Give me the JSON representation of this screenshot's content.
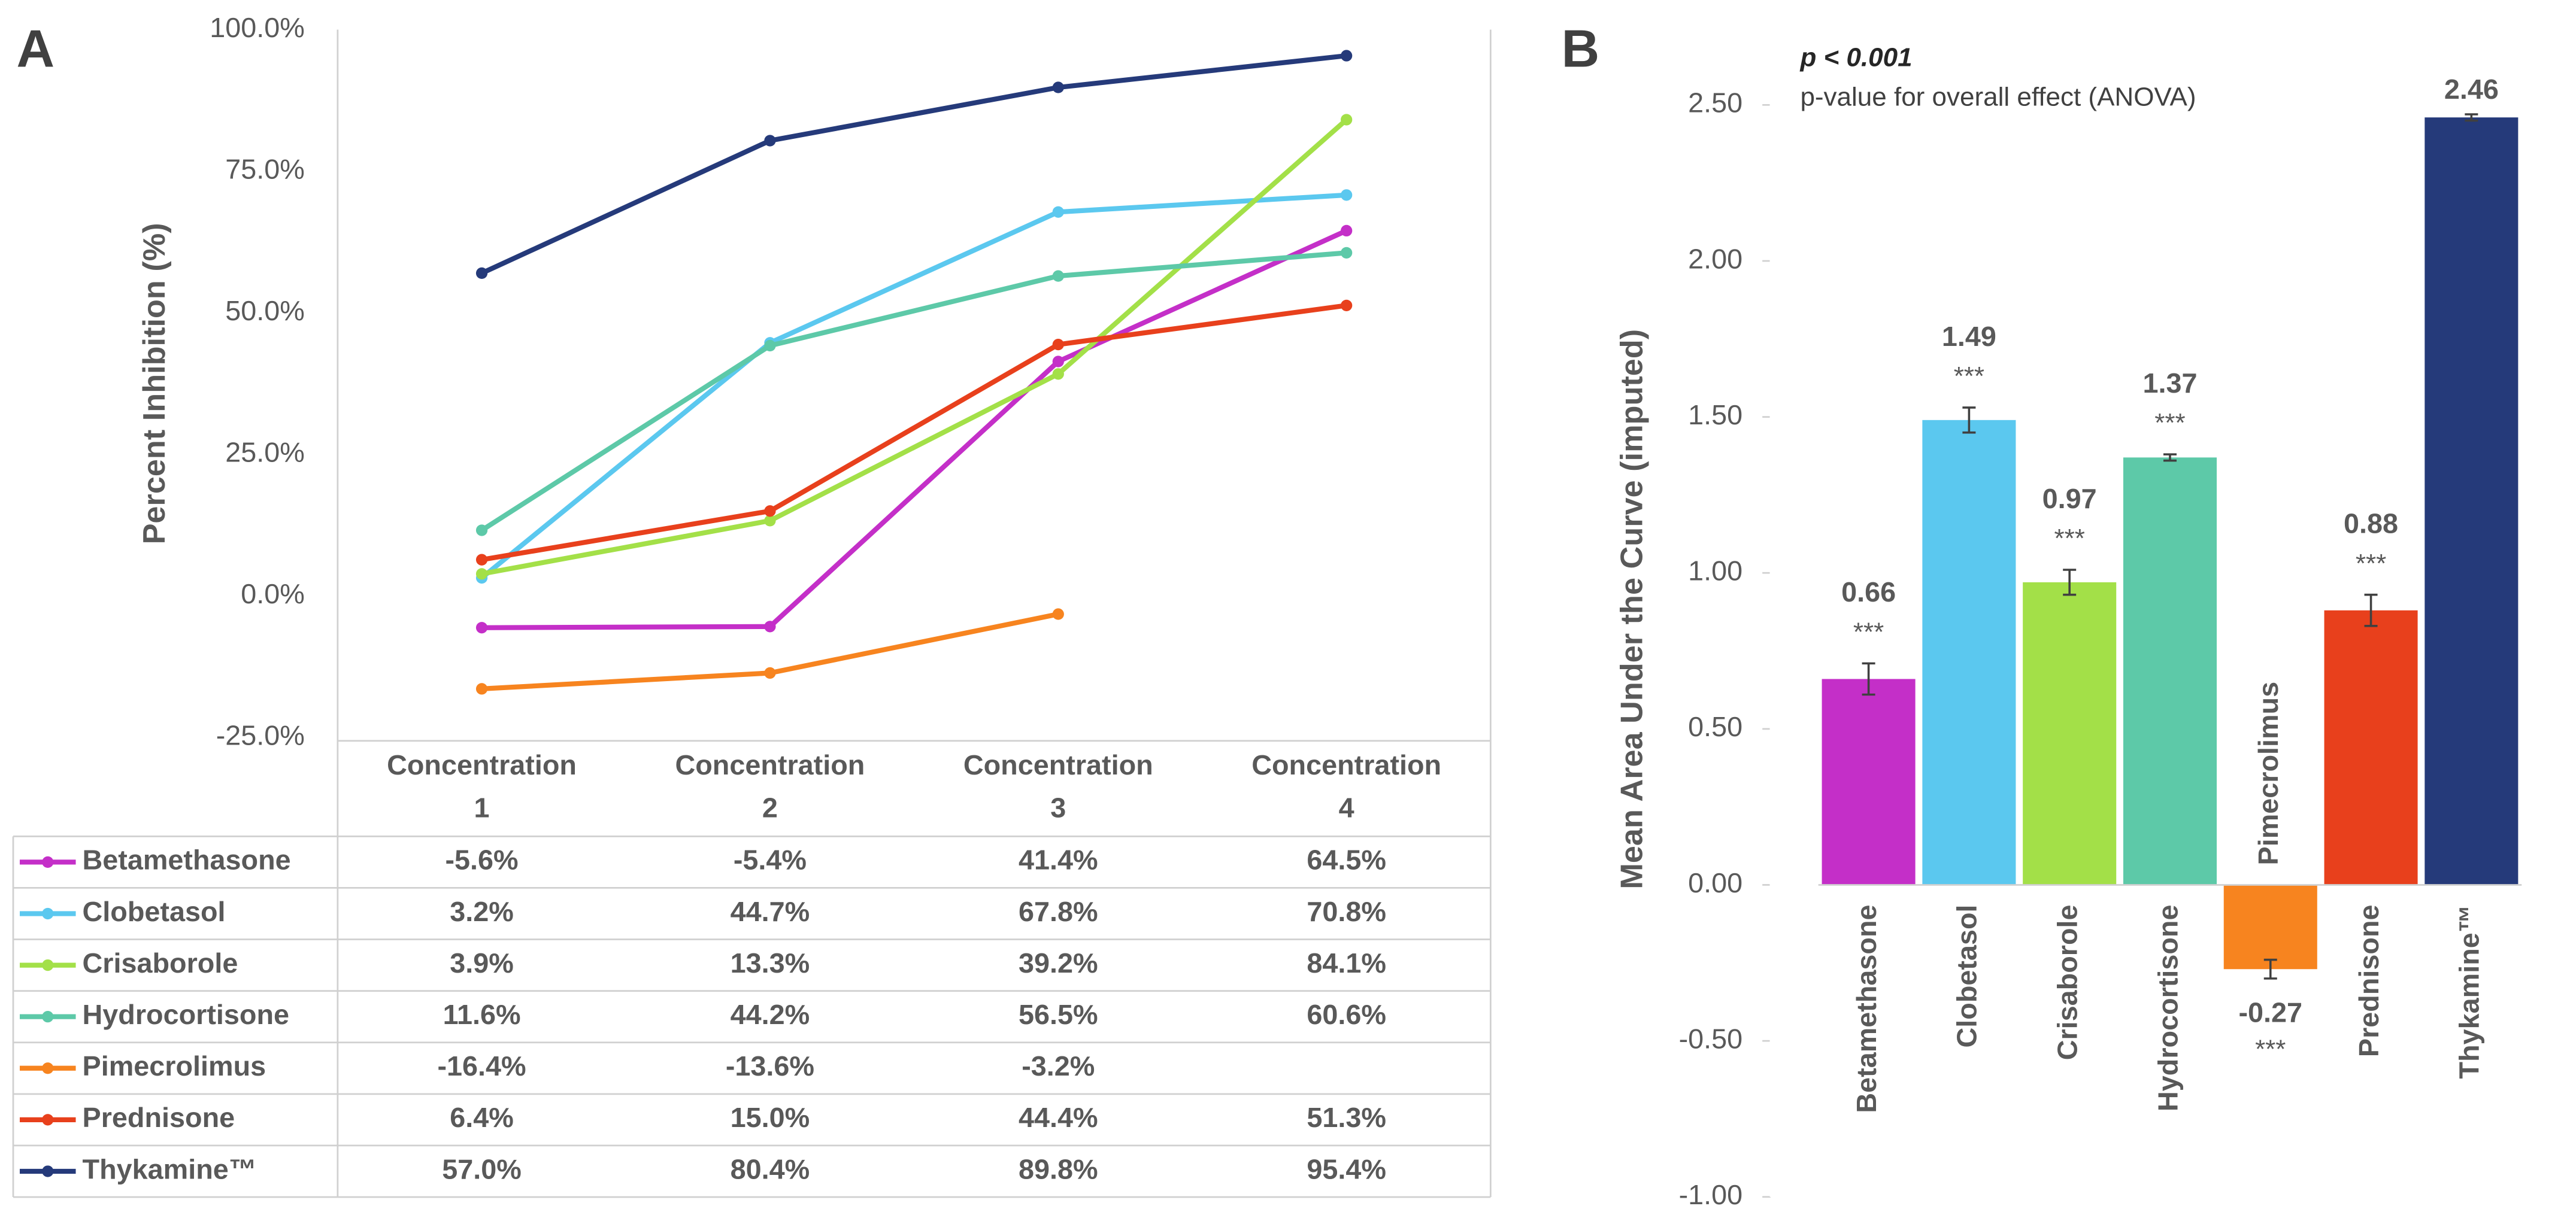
{
  "chart_data": [
    {
      "type": "line",
      "panel_label": "A",
      "y_label": "Percent Inhibition (%)",
      "categories": [
        "Concentration 1",
        "Concentration 2",
        "Concentration 3",
        "Concentration 4"
      ],
      "ylim": [
        -25,
        100
      ],
      "yticks": [
        {
          "value": -25,
          "label": "-25.0%"
        },
        {
          "value": 0,
          "label": "0.0%"
        },
        {
          "value": 25,
          "label": "25.0%"
        },
        {
          "value": 50,
          "label": "50.0%"
        },
        {
          "value": 75,
          "label": "75.0%"
        },
        {
          "value": 100,
          "label": "100.0%"
        }
      ],
      "series": [
        {
          "name": "Betamethasone",
          "color": "#c42fc8",
          "values": [
            -5.6,
            -5.4,
            41.4,
            64.5
          ],
          "value_labels": [
            "-5.6%",
            "-5.4%",
            "41.4%",
            "64.5%"
          ]
        },
        {
          "name": "Clobetasol",
          "color": "#5bc8ef",
          "values": [
            3.2,
            44.7,
            67.8,
            70.8
          ],
          "value_labels": [
            "3.2%",
            "44.7%",
            "67.8%",
            "70.8%"
          ]
        },
        {
          "name": "Crisaborole",
          "color": "#a3e048",
          "values": [
            3.9,
            13.3,
            39.2,
            84.1
          ],
          "value_labels": [
            "3.9%",
            "13.3%",
            "39.2%",
            "84.1%"
          ]
        },
        {
          "name": "Hydrocortisone",
          "color": "#5dc9a8",
          "values": [
            11.6,
            44.2,
            56.5,
            60.6
          ],
          "value_labels": [
            "11.6%",
            "44.2%",
            "56.5%",
            "60.6%"
          ]
        },
        {
          "name": "Pimecrolimus",
          "color": "#f7841f",
          "values": [
            -16.4,
            -13.6,
            -3.2,
            null
          ],
          "value_labels": [
            "-16.4%",
            "-13.6%",
            "-3.2%",
            null
          ]
        },
        {
          "name": "Prednisone",
          "color": "#e8401c",
          "values": [
            6.4,
            15.0,
            44.4,
            51.3
          ],
          "value_labels": [
            "6.4%",
            "15.0%",
            "44.4%",
            "51.3%"
          ]
        },
        {
          "name": "Thykamine™",
          "color": "#253a7a",
          "values": [
            57.0,
            80.4,
            89.8,
            95.4
          ],
          "value_labels": [
            "57.0%",
            "80.4%",
            "89.8%",
            "95.4%"
          ]
        }
      ]
    },
    {
      "type": "bar",
      "panel_label": "B",
      "annotation_title": "p < 0.001",
      "annotation_subtitle": "p-value for overall effect (ANOVA)",
      "y_label": "Mean Area Under the Curve (imputed)",
      "categories": [
        "Betamethasone",
        "Clobetasol",
        "Crisaborole",
        "Hydrocortisone",
        "Pimecrolimus",
        "Prednisone",
        "Thykamine™"
      ],
      "values": [
        0.66,
        1.49,
        0.97,
        1.37,
        -0.27,
        0.88,
        2.46
      ],
      "errors": [
        0.05,
        0.04,
        0.04,
        0.01,
        0.03,
        0.05,
        0.01
      ],
      "significance": [
        "***",
        "***",
        "***",
        "***",
        "***",
        "***",
        null
      ],
      "colors": [
        "#c42fc8",
        "#5bc8ef",
        "#a3e048",
        "#5dc9a8",
        "#f7841f",
        "#e8401c",
        "#253a7a"
      ],
      "ylim": [
        -1,
        2.62
      ],
      "yticks": [
        {
          "value": -1,
          "label": "-1.00"
        },
        {
          "value": -0.5,
          "label": "-0.50"
        },
        {
          "value": 0,
          "label": "0.00"
        },
        {
          "value": 0.5,
          "label": "0.50"
        },
        {
          "value": 1,
          "label": "1.00"
        },
        {
          "value": 1.5,
          "label": "1.50"
        },
        {
          "value": 2,
          "label": "2.00"
        },
        {
          "value": 2.5,
          "label": "2.50"
        }
      ]
    }
  ]
}
